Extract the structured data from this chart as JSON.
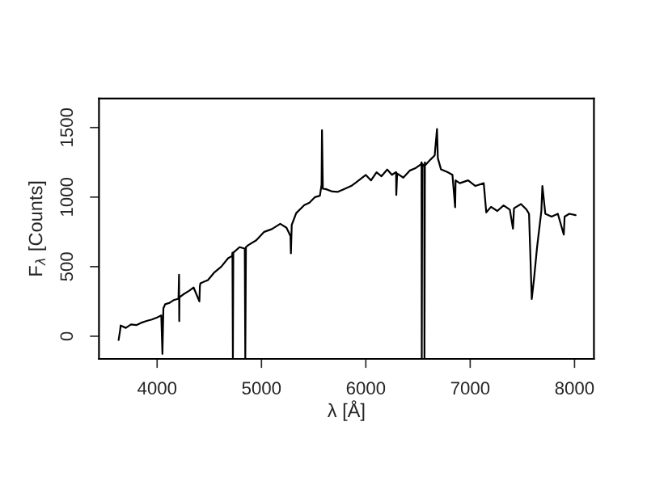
{
  "chart_data": {
    "type": "line",
    "xlabel": "λ [Å]",
    "ylabel": "F$_{λ}$ [Counts]",
    "xlim": [
      3443,
      8186
    ],
    "ylim": [
      -163,
      1709
    ],
    "xticks": [
      4000,
      5000,
      6000,
      7000,
      8000
    ],
    "yticks": [
      0,
      500,
      1000,
      1500
    ],
    "grid": false,
    "marker": "none",
    "line_style": "solid",
    "series": [
      {
        "color": "#000000",
        "x": [
          3631,
          3645,
          3651,
          3700,
          3750,
          3800,
          3846,
          3900,
          3950,
          4000,
          4040,
          4051,
          4060,
          4077,
          4120,
          4160,
          4205,
          4210,
          4212,
          4214,
          4250,
          4308,
          4350,
          4405,
          4410,
          4415,
          4487,
          4550,
          4615,
          4680,
          4718,
          4722,
          4726,
          4730,
          4790,
          4840,
          4845,
          4851,
          4872,
          4950,
          5026,
          5100,
          5180,
          5240,
          5278,
          5282,
          5290,
          5333,
          5410,
          5460,
          5513,
          5560,
          5576,
          5580,
          5588,
          5615,
          5680,
          5733,
          5800,
          5860,
          5897,
          5950,
          6000,
          6050,
          6103,
          6150,
          6205,
          6250,
          6290,
          6292,
          6300,
          6359,
          6420,
          6480,
          6530,
          6534,
          6536,
          6540,
          6560,
          6562,
          6566,
          6570,
          6620,
          6660,
          6682,
          6690,
          6720,
          6780,
          6830,
          6856,
          6860,
          6900,
          6980,
          7050,
          7130,
          7154,
          7200,
          7260,
          7320,
          7380,
          7410,
          7420,
          7487,
          7540,
          7564,
          7580,
          7590,
          7610,
          7641,
          7682,
          7692,
          7720,
          7780,
          7840,
          7897,
          7905,
          7950,
          8010
        ],
        "values": [
          -27,
          40,
          77,
          60,
          85,
          80,
          96,
          110,
          120,
          135,
          150,
          -127,
          200,
          230,
          240,
          260,
          270,
          442,
          108,
          280,
          300,
          327,
          350,
          250,
          360,
          380,
          404,
          460,
          500,
          560,
          577,
          600,
          -160,
          600,
          640,
          630,
          -160,
          640,
          654,
          690,
          750,
          770,
          808,
          780,
          720,
          596,
          800,
          885,
          942,
          960,
          1000,
          1010,
          1090,
          1480,
          1060,
          1058,
          1040,
          1038,
          1060,
          1080,
          1100,
          1130,
          1159,
          1120,
          1178,
          1150,
          1198,
          1160,
          1180,
          1015,
          1170,
          1140,
          1190,
          1210,
          1237,
          1250,
          -160,
          1240,
          1220,
          -160,
          1250,
          1230,
          1270,
          1300,
          1490,
          1280,
          1200,
          1180,
          1160,
          927,
          1120,
          1100,
          1120,
          1080,
          1100,
          890,
          930,
          900,
          940,
          910,
          773,
          920,
          950,
          910,
          880,
          500,
          267,
          400,
          640,
          900,
          1080,
          880,
          860,
          880,
          730,
          860,
          880,
          870
        ]
      }
    ]
  }
}
